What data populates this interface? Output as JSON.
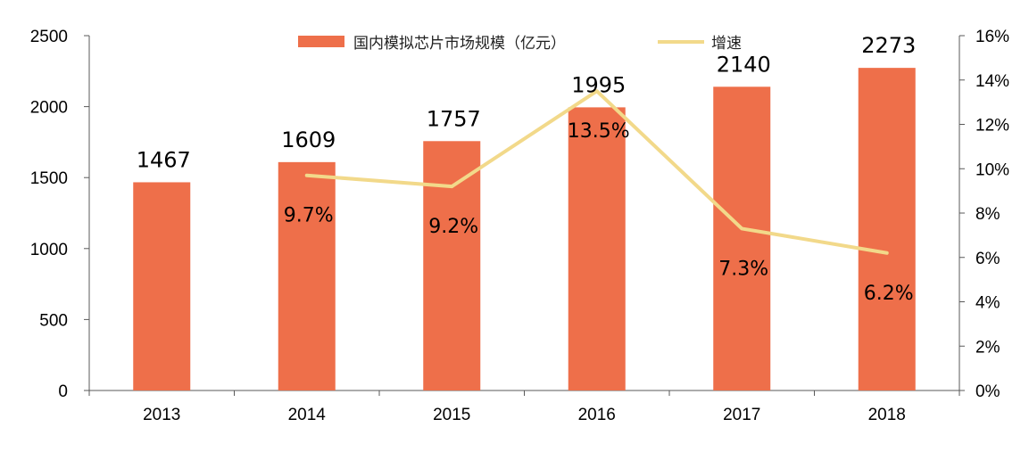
{
  "chart_data": {
    "type": "bar",
    "categories": [
      "2013",
      "2014",
      "2015",
      "2016",
      "2017",
      "2018"
    ],
    "series": [
      {
        "name": "国内模拟芯片市场规模（亿元）",
        "type": "bar",
        "axis": "left",
        "color": "#EE6F4A",
        "values": [
          1467,
          1609,
          1757,
          1995,
          2140,
          2273
        ],
        "labels": [
          "1467",
          "1609",
          "1757",
          "1995",
          "2140",
          "2273"
        ]
      },
      {
        "name": "增速",
        "type": "line",
        "axis": "right",
        "color": "#F2D98A",
        "values": [
          null,
          9.7,
          9.2,
          13.5,
          7.3,
          6.2
        ],
        "labels": [
          "",
          "9.7%",
          "9.2%",
          "13.5%",
          "7.3%",
          "6.2%"
        ]
      }
    ],
    "y_left": {
      "min": 0,
      "max": 2500,
      "ticks": [
        "0",
        "500",
        "1000",
        "1500",
        "2000",
        "2500"
      ]
    },
    "y_right": {
      "min": 0,
      "max": 16,
      "ticks": [
        "0%",
        "2%",
        "4%",
        "6%",
        "8%",
        "10%",
        "12%",
        "14%",
        "16%"
      ]
    },
    "grid": false,
    "legend": {
      "position": "top"
    }
  }
}
